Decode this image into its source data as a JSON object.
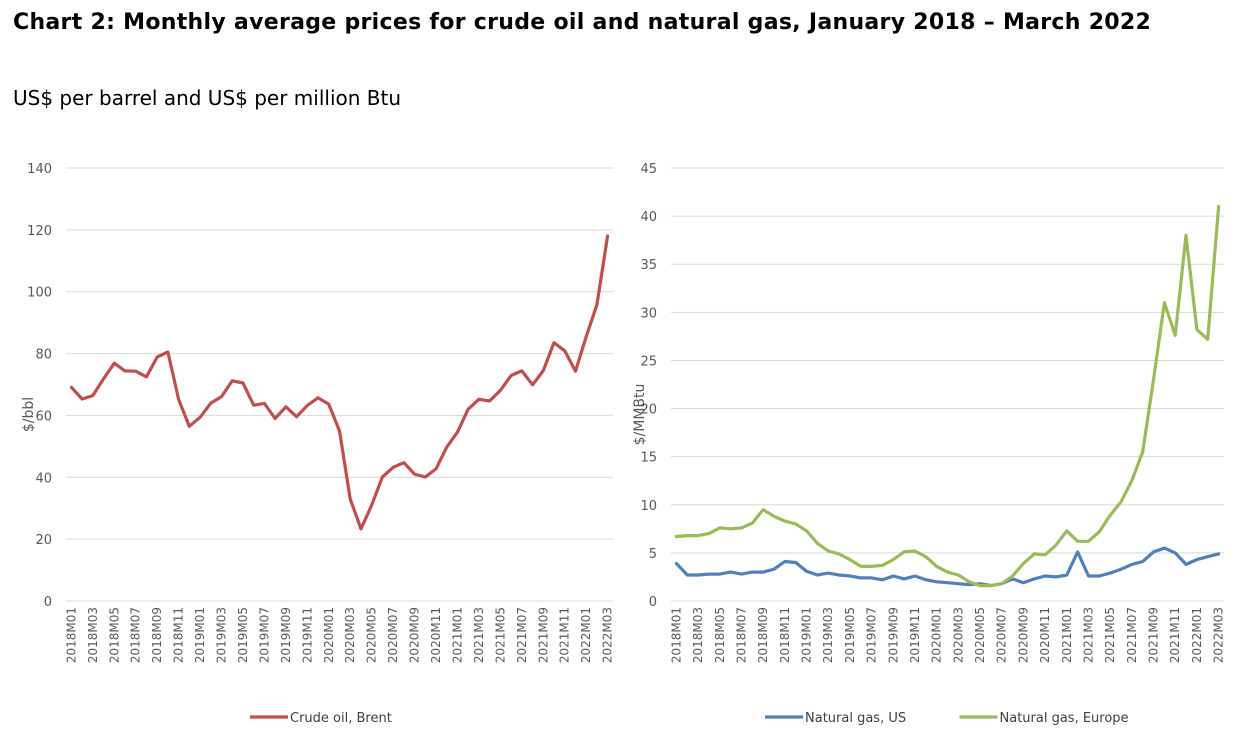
{
  "title": "Chart 2: Monthly average prices for crude oil and natural gas, January 2018 – March 2022",
  "subtitle": "US$ per barrel and US$ per million Btu",
  "chart_data": [
    {
      "type": "line",
      "ylabel": "$/bbl",
      "ylim": [
        0,
        140
      ],
      "yticks": [
        0,
        20,
        40,
        60,
        80,
        100,
        120,
        140
      ],
      "legend_position": "bottom",
      "categories": [
        "2018M01",
        "2018M02",
        "2018M03",
        "2018M04",
        "2018M05",
        "2018M06",
        "2018M07",
        "2018M08",
        "2018M09",
        "2018M10",
        "2018M11",
        "2018M12",
        "2019M01",
        "2019M02",
        "2019M03",
        "2019M04",
        "2019M05",
        "2019M06",
        "2019M07",
        "2019M08",
        "2019M09",
        "2019M10",
        "2019M11",
        "2019M12",
        "2020M01",
        "2020M02",
        "2020M03",
        "2020M04",
        "2020M05",
        "2020M06",
        "2020M07",
        "2020M08",
        "2020M09",
        "2020M10",
        "2020M11",
        "2020M12",
        "2021M01",
        "2021M02",
        "2021M03",
        "2021M04",
        "2021M05",
        "2021M06",
        "2021M07",
        "2021M08",
        "2021M09",
        "2021M10",
        "2021M11",
        "2021M12",
        "2022M01",
        "2022M02",
        "2022M03"
      ],
      "xtick_labels": [
        "2018M01",
        "2018M03",
        "2018M05",
        "2018M07",
        "2018M09",
        "2018M11",
        "2019M01",
        "2019M03",
        "2019M05",
        "2019M07",
        "2019M09",
        "2019M11",
        "2020M01",
        "2020M03",
        "2020M05",
        "2020M07",
        "2020M09",
        "2020M11",
        "2021M01",
        "2021M03",
        "2021M05",
        "2021M07",
        "2021M09",
        "2021M11",
        "2022M01",
        "2022M03"
      ],
      "series": [
        {
          "name": "Crude oil, Brent",
          "color": "#c0504d",
          "values": [
            69.1,
            65.3,
            66.4,
            71.8,
            76.9,
            74.4,
            74.3,
            72.5,
            78.9,
            80.5,
            65.2,
            56.5,
            59.4,
            64.0,
            66.1,
            71.2,
            70.5,
            63.3,
            63.9,
            59.0,
            62.8,
            59.6,
            63.2,
            65.7,
            63.6,
            55.0,
            33.0,
            23.3,
            31.0,
            40.1,
            43.2,
            44.7,
            41.0,
            40.1,
            42.7,
            49.8,
            54.6,
            62.0,
            65.2,
            64.7,
            68.1,
            72.9,
            74.4,
            69.9,
            74.5,
            83.5,
            80.9,
            74.3,
            85.5,
            95.8,
            118.0
          ]
        }
      ]
    },
    {
      "type": "line",
      "ylabel": "$/MMBtu",
      "ylim": [
        0,
        45
      ],
      "yticks": [
        0,
        5,
        10,
        15,
        20,
        25,
        30,
        35,
        40,
        45
      ],
      "legend_position": "bottom",
      "categories": [
        "2018M01",
        "2018M02",
        "2018M03",
        "2018M04",
        "2018M05",
        "2018M06",
        "2018M07",
        "2018M08",
        "2018M09",
        "2018M10",
        "2018M11",
        "2018M12",
        "2019M01",
        "2019M02",
        "2019M03",
        "2019M04",
        "2019M05",
        "2019M06",
        "2019M07",
        "2019M08",
        "2019M09",
        "2019M10",
        "2019M11",
        "2019M12",
        "2020M01",
        "2020M02",
        "2020M03",
        "2020M04",
        "2020M05",
        "2020M06",
        "2020M07",
        "2020M08",
        "2020M09",
        "2020M10",
        "2020M11",
        "2020M12",
        "2021M01",
        "2021M02",
        "2021M03",
        "2021M04",
        "2021M05",
        "2021M06",
        "2021M07",
        "2021M08",
        "2021M09",
        "2021M10",
        "2021M11",
        "2021M12",
        "2022M01",
        "2022M02",
        "2022M03"
      ],
      "xtick_labels": [
        "2018M01",
        "2018M03",
        "2018M05",
        "2018M07",
        "2018M09",
        "2018M11",
        "2019M01",
        "2019M03",
        "2019M05",
        "2019M07",
        "2019M09",
        "2019M11",
        "2020M01",
        "2020M03",
        "2020M05",
        "2020M07",
        "2020M09",
        "2020M11",
        "2021M01",
        "2021M03",
        "2021M05",
        "2021M07",
        "2021M09",
        "2021M11",
        "2022M01",
        "2022M03"
      ],
      "series": [
        {
          "name": "Natural gas, US",
          "color": "#4f81bd",
          "values": [
            3.9,
            2.7,
            2.7,
            2.8,
            2.8,
            3.0,
            2.8,
            3.0,
            3.0,
            3.3,
            4.1,
            4.0,
            3.1,
            2.7,
            2.9,
            2.7,
            2.6,
            2.4,
            2.4,
            2.2,
            2.6,
            2.3,
            2.6,
            2.2,
            2.0,
            1.9,
            1.8,
            1.7,
            1.8,
            1.6,
            1.8,
            2.3,
            1.9,
            2.3,
            2.6,
            2.5,
            2.7,
            5.1,
            2.6,
            2.6,
            2.9,
            3.3,
            3.8,
            4.1,
            5.1,
            5.5,
            5.0,
            3.8,
            4.3,
            4.6,
            4.9
          ]
        },
        {
          "name": "Natural gas, Europe",
          "color": "#9bbb59",
          "values": [
            6.7,
            6.8,
            6.8,
            7.0,
            7.6,
            7.5,
            7.6,
            8.1,
            9.5,
            8.8,
            8.3,
            8.0,
            7.3,
            6.0,
            5.2,
            4.9,
            4.3,
            3.6,
            3.6,
            3.7,
            4.3,
            5.1,
            5.2,
            4.6,
            3.6,
            3.0,
            2.7,
            2.0,
            1.6,
            1.6,
            1.8,
            2.6,
            3.9,
            4.9,
            4.8,
            5.8,
            7.3,
            6.2,
            6.2,
            7.2,
            8.9,
            10.3,
            12.5,
            15.5,
            23.0,
            31.0,
            27.6,
            38.0,
            28.2,
            27.2,
            41.0
          ]
        }
      ]
    }
  ]
}
